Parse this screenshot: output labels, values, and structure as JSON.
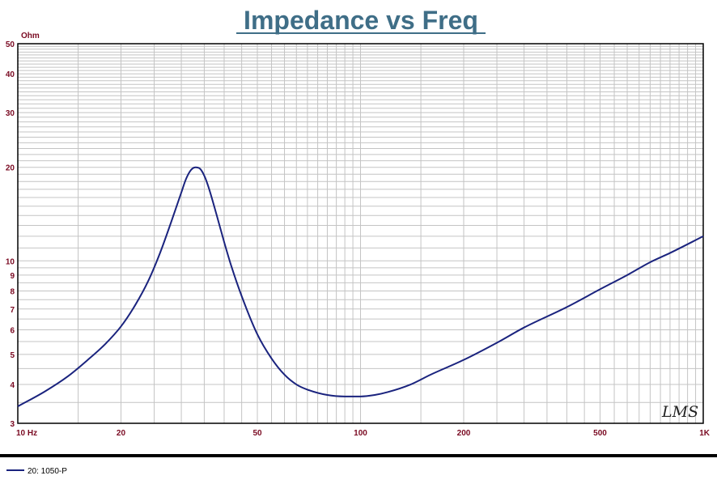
{
  "chart_data": {
    "type": "line",
    "title": "Impedance vs Freq",
    "ylabel": "Ohm",
    "x_scale": "log",
    "y_scale": "log",
    "xlim": [
      10,
      1000
    ],
    "ylim": [
      3,
      50
    ],
    "grid": true,
    "x_ticks": [
      {
        "value": 10,
        "label": "10  Hz"
      },
      {
        "value": 20,
        "label": "20"
      },
      {
        "value": 50,
        "label": "50"
      },
      {
        "value": 100,
        "label": "100"
      },
      {
        "value": 200,
        "label": "200"
      },
      {
        "value": 500,
        "label": "500"
      },
      {
        "value": 1000,
        "label": "1K"
      }
    ],
    "y_ticks": [
      {
        "value": 50,
        "label": "50"
      },
      {
        "value": 40,
        "label": "40"
      },
      {
        "value": 30,
        "label": "30"
      },
      {
        "value": 20,
        "label": "20"
      },
      {
        "value": 10,
        "label": "10"
      },
      {
        "value": 9,
        "label": "9"
      },
      {
        "value": 8,
        "label": "8"
      },
      {
        "value": 7,
        "label": "7"
      },
      {
        "value": 6,
        "label": "6"
      },
      {
        "value": 5,
        "label": "5"
      },
      {
        "value": 4,
        "label": "4"
      },
      {
        "value": 3,
        "label": "3"
      }
    ],
    "series": [
      {
        "name": "20: 1050-P",
        "color": "#1a237e",
        "x": [
          10,
          12,
          14,
          16,
          18,
          20,
          22,
          24,
          26,
          28,
          30,
          31,
          32,
          33,
          34,
          35,
          36,
          38,
          40,
          42,
          45,
          50,
          55,
          60,
          65,
          70,
          80,
          90,
          100,
          110,
          120,
          140,
          160,
          200,
          250,
          300,
          400,
          500,
          600,
          700,
          800,
          1000
        ],
        "values": [
          3.4,
          3.8,
          4.25,
          4.8,
          5.4,
          6.15,
          7.2,
          8.6,
          10.6,
          13.3,
          16.6,
          18.4,
          19.6,
          20.0,
          19.8,
          18.8,
          17.3,
          14.1,
          11.5,
          9.6,
          7.7,
          5.8,
          4.85,
          4.3,
          4.0,
          3.85,
          3.7,
          3.66,
          3.66,
          3.7,
          3.78,
          4.0,
          4.3,
          4.8,
          5.45,
          6.1,
          7.1,
          8.1,
          9.0,
          9.9,
          10.6,
          12.0
        ]
      }
    ]
  },
  "legend": {
    "label": "20: 1050-P",
    "color": "#1a237e"
  },
  "watermark": "LMS",
  "colors": {
    "title": "#3f6e87",
    "tick_label": "#7a0a22",
    "grid": "#c4c4c4",
    "curve": "#1a237e"
  }
}
